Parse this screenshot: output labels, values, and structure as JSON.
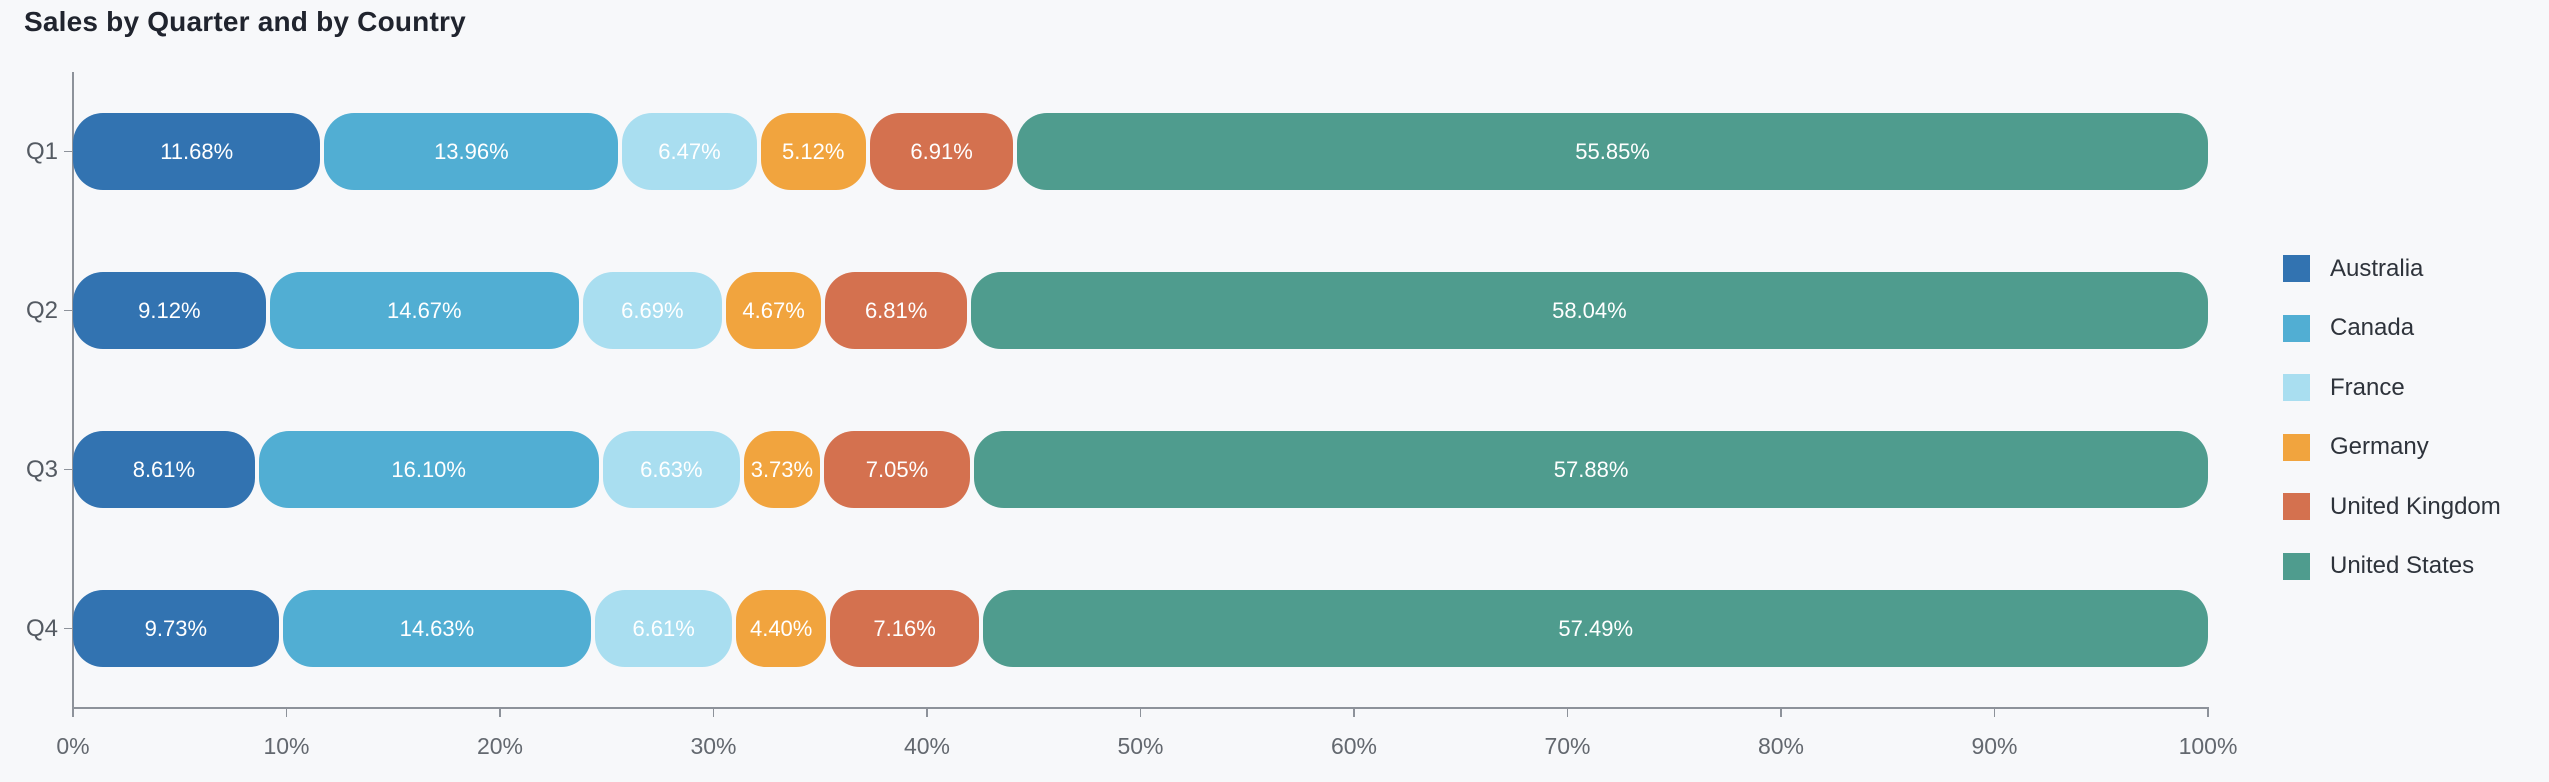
{
  "chart_data": {
    "type": "bar",
    "variant": "stacked-horizontal-percentage",
    "title": "Sales by Quarter and by Country",
    "categories": [
      "Q1",
      "Q2",
      "Q3",
      "Q4"
    ],
    "series": [
      {
        "name": "Australia",
        "color": "#3273b1",
        "values": [
          11.68,
          9.12,
          8.61,
          9.73
        ]
      },
      {
        "name": "Canada",
        "color": "#51aed3",
        "values": [
          13.96,
          14.67,
          16.1,
          14.63
        ]
      },
      {
        "name": "France",
        "color": "#a9def0",
        "values": [
          6.47,
          6.69,
          6.63,
          6.61
        ]
      },
      {
        "name": "Germany",
        "color": "#f1a43e",
        "values": [
          5.12,
          4.67,
          3.73,
          4.4
        ]
      },
      {
        "name": "United Kingdom",
        "color": "#d4714f",
        "values": [
          6.91,
          6.81,
          7.05,
          7.16
        ]
      },
      {
        "name": "United States",
        "color": "#4f9c8e",
        "values": [
          55.85,
          58.04,
          57.88,
          57.49
        ]
      }
    ],
    "bar_labels": {
      "Q1": [
        "11.68%",
        "13.96%",
        "6.47%",
        "5.12%",
        "6.91%",
        "55.85%"
      ],
      "Q2": [
        "9.12%",
        "14.67%",
        "6.69%",
        "4.67%",
        "6.81%",
        "58.04%"
      ],
      "Q3": [
        "8.61%",
        "16.10%",
        "6.63%",
        "3.73%",
        "7.05%",
        "57.88%"
      ],
      "Q4": [
        "9.73%",
        "14.63%",
        "6.61%",
        "4.40%",
        "7.16%",
        "57.49%"
      ]
    },
    "label_format": "percent_2dp",
    "xlabel": "",
    "ylabel": "",
    "xlim": [
      0,
      100
    ],
    "x_tick_labels": [
      "0%",
      "10%",
      "20%",
      "30%",
      "40%",
      "50%",
      "60%",
      "70%",
      "80%",
      "90%",
      "100%"
    ],
    "grid": false,
    "legend_position": "right",
    "colors": {
      "background": "#f7f8fa",
      "axis_line": "#8d929a",
      "tick_label": "#63686f",
      "category_label": "#545a62",
      "title_text": "#20242e",
      "legend_text": "#2e333b",
      "bar_value_text": "#ffffff"
    }
  }
}
